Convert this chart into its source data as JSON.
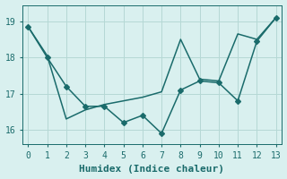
{
  "xlabel": "Humidex (Indice chaleur)",
  "line1_x": [
    0,
    1,
    2,
    3,
    4,
    5,
    6,
    7,
    8,
    9,
    10,
    11,
    12,
    13
  ],
  "line1_y": [
    18.85,
    18.0,
    17.2,
    16.65,
    16.65,
    16.2,
    16.4,
    15.9,
    17.1,
    17.35,
    17.3,
    16.8,
    18.45,
    19.1
  ],
  "line2_x": [
    0,
    1,
    2,
    3,
    4,
    5,
    6,
    7,
    8,
    9,
    10,
    11,
    12,
    13
  ],
  "line2_y": [
    18.85,
    18.05,
    16.3,
    16.55,
    16.7,
    16.8,
    16.9,
    17.05,
    18.5,
    17.4,
    17.35,
    18.65,
    18.5,
    19.1
  ],
  "line_color": "#1a6b6b",
  "bg_color": "#d9f0ef",
  "grid_color": "#b5d8d5",
  "ylim": [
    15.6,
    19.45
  ],
  "xlim": [
    -0.3,
    13.3
  ],
  "yticks": [
    16,
    17,
    18,
    19
  ],
  "xticks": [
    0,
    1,
    2,
    3,
    4,
    5,
    6,
    7,
    8,
    9,
    10,
    11,
    12,
    13
  ],
  "marker": "D",
  "markersize": 3.0,
  "linewidth": 1.1,
  "xlabel_fontsize": 8,
  "tick_fontsize": 7
}
